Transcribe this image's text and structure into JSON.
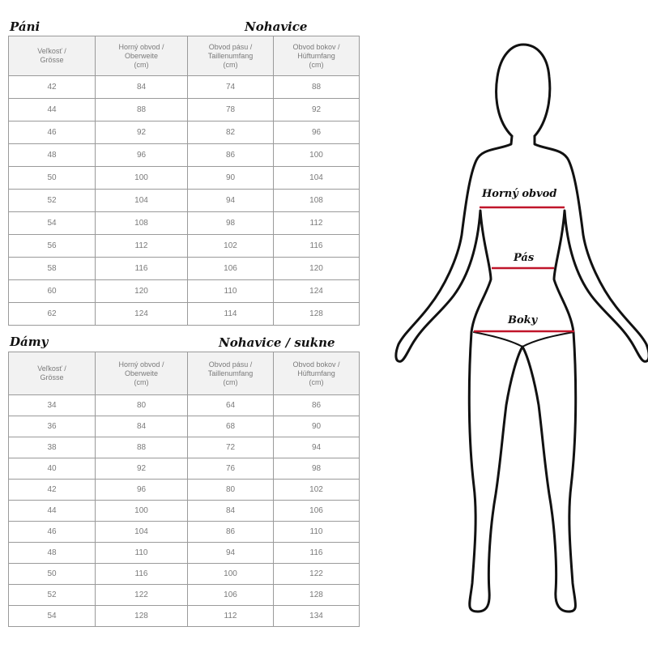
{
  "men": {
    "title": "Páni",
    "subtitle": "Nohavice",
    "headers": [
      "Veľkosť /\nGrösse",
      "Horný obvod /\nOberweite\n(cm)",
      "Obvod pásu /\nTaillenumfang\n(cm)",
      "Obvod bokov /\nHüftumfang\n(cm)"
    ],
    "rows": [
      [
        "42",
        "84",
        "74",
        "88"
      ],
      [
        "44",
        "88",
        "78",
        "92"
      ],
      [
        "46",
        "92",
        "82",
        "96"
      ],
      [
        "48",
        "96",
        "86",
        "100"
      ],
      [
        "50",
        "100",
        "90",
        "104"
      ],
      [
        "52",
        "104",
        "94",
        "108"
      ],
      [
        "54",
        "108",
        "98",
        "112"
      ],
      [
        "56",
        "112",
        "102",
        "116"
      ],
      [
        "58",
        "116",
        "106",
        "120"
      ],
      [
        "60",
        "120",
        "110",
        "124"
      ],
      [
        "62",
        "124",
        "114",
        "128"
      ]
    ]
  },
  "women": {
    "title": "Dámy",
    "subtitle": "Nohavice / sukne",
    "headers": [
      "Veľkosť /\nGrösse",
      "Horný obvod /\nOberweite\n(cm)",
      "Obvod pásu /\nTaillenumfang\n(cm)",
      "Obvod bokov /\nHüftumfang\n(cm)"
    ],
    "rows": [
      [
        "34",
        "80",
        "64",
        "86"
      ],
      [
        "36",
        "84",
        "68",
        "90"
      ],
      [
        "38",
        "88",
        "72",
        "94"
      ],
      [
        "40",
        "92",
        "76",
        "98"
      ],
      [
        "42",
        "96",
        "80",
        "102"
      ],
      [
        "44",
        "100",
        "84",
        "106"
      ],
      [
        "46",
        "104",
        "86",
        "110"
      ],
      [
        "48",
        "110",
        "94",
        "116"
      ],
      [
        "50",
        "116",
        "100",
        "122"
      ],
      [
        "52",
        "122",
        "106",
        "128"
      ],
      [
        "54",
        "128",
        "112",
        "134"
      ]
    ]
  },
  "figure": {
    "labels": {
      "chest": "Horný obvod",
      "waist": "Pás",
      "hips": "Boky"
    },
    "line_color": "#c0152a"
  }
}
